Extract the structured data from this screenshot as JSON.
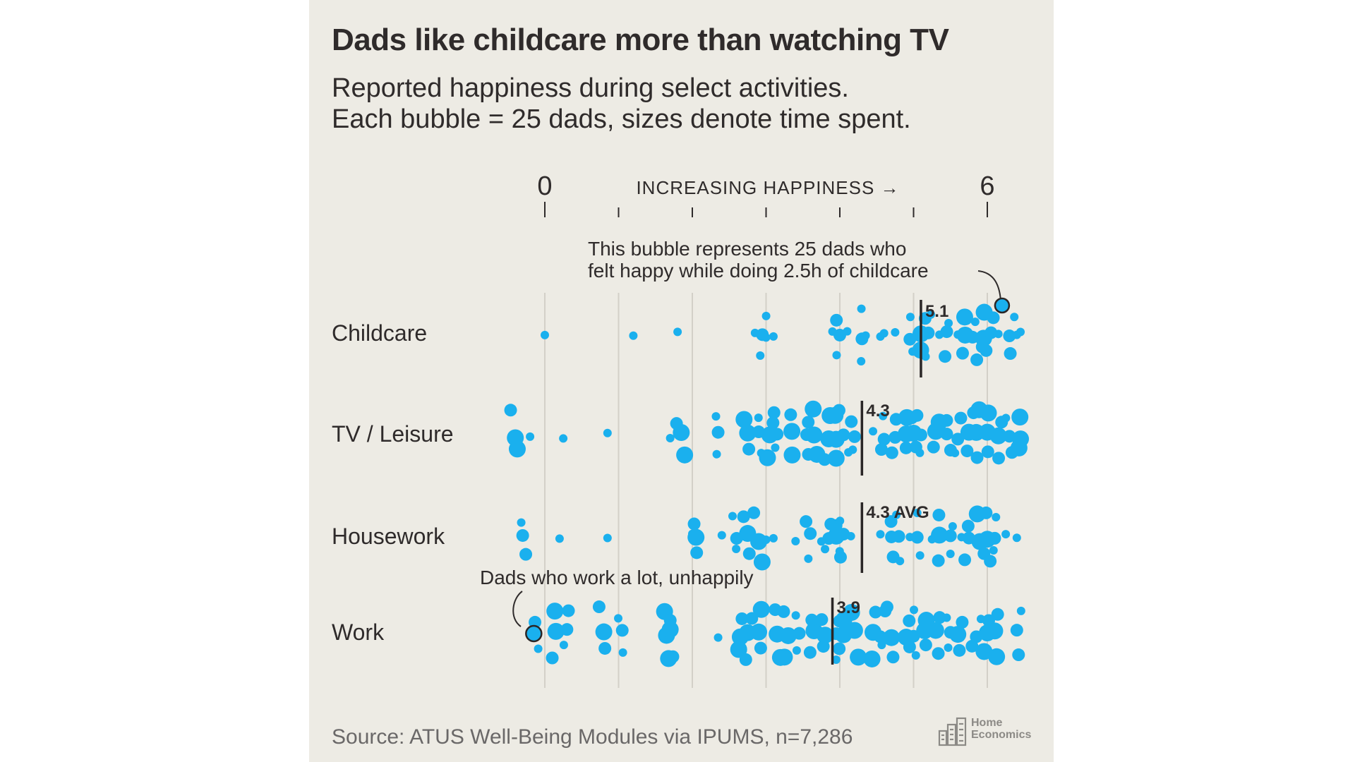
{
  "header": {
    "title": "Dads like childcare more than watching TV",
    "subtitle_line1": "Reported happiness during select activities.",
    "subtitle_line2": "Each bubble = 25 dads, sizes denote time spent."
  },
  "footer": {
    "source": "Source: ATUS Well-Being Modules via IPUMS, n=7,286",
    "logo_line1": "Home",
    "logo_line2": "Economics"
  },
  "colors": {
    "background": "#edebe4",
    "bubble": "#1ab0ee",
    "text": "#2f2b2b",
    "gridline": "#d3d0c8"
  },
  "chart_data": {
    "type": "scatter",
    "xlim": [
      -0.5,
      6.5
    ],
    "xticks": [
      0,
      1,
      2,
      3,
      4,
      5,
      6
    ],
    "xtick_labels": [
      "0",
      "",
      "",
      "",
      "",
      "",
      "6"
    ],
    "axis_label": "INCREASING HAPPINESS →",
    "categories": [
      "Childcare",
      "TV / Leisure",
      "Housework",
      "Work"
    ],
    "series": [
      {
        "name": "Childcare",
        "average": 5.1,
        "average_label": "5.1",
        "bubble_values": [
          0,
          1.2,
          1.8,
          2.85,
          2.95,
          3.0,
          3.1,
          3.9,
          4.0,
          4.1,
          4.3,
          4.35,
          4.55,
          4.6,
          4.75,
          4.95,
          5.1,
          5.2,
          5.35,
          5.45,
          5.6,
          5.7,
          5.8,
          5.95,
          6.05,
          6.15,
          6.3,
          6.4,
          6.45
        ],
        "bubble_sizes": [
          1,
          1,
          1,
          1,
          2,
          1,
          1,
          1,
          2,
          1,
          2,
          1,
          1,
          1,
          1,
          2,
          3,
          2,
          1,
          2,
          1,
          3,
          2,
          3,
          2,
          1,
          2,
          1,
          1
        ]
      },
      {
        "name": "TV / Leisure",
        "average": 4.3,
        "average_label": "4.3",
        "bubble_values": [
          -0.4,
          -0.2,
          0.25,
          0.85,
          1.7,
          1.85,
          2.35,
          2.75,
          2.9,
          3.05,
          3.15,
          3.35,
          3.55,
          3.65,
          3.85,
          3.95,
          4.05,
          4.2,
          4.45,
          4.6,
          4.75,
          4.9,
          5.0,
          5.1,
          5.3,
          5.45,
          5.6,
          5.75,
          5.85,
          6.0,
          6.15,
          6.3,
          6.45
        ],
        "bubble_sizes": [
          3,
          1,
          1,
          1,
          1,
          3,
          2,
          3,
          2,
          3,
          2,
          3,
          2,
          3,
          3,
          3,
          2,
          2,
          1,
          2,
          2,
          3,
          3,
          2,
          3,
          2,
          2,
          3,
          3,
          3,
          3,
          2,
          3
        ]
      },
      {
        "name": "Housework",
        "average": 4.3,
        "average_label": "4.3 AVG",
        "bubble_values": [
          -0.3,
          0.2,
          0.85,
          2.0,
          2.05,
          2.4,
          2.6,
          2.75,
          2.9,
          3.0,
          3.1,
          3.4,
          3.6,
          3.75,
          3.85,
          3.95,
          4.05,
          4.15,
          4.55,
          4.7,
          4.8,
          4.95,
          5.05,
          5.25,
          5.35,
          5.5,
          5.65,
          5.75,
          5.9,
          6.0,
          6.1,
          6.25,
          6.4
        ],
        "bubble_sizes": [
          2,
          1,
          1,
          1,
          3,
          1,
          2,
          3,
          3,
          1,
          1,
          1,
          2,
          1,
          2,
          3,
          2,
          1,
          1,
          2,
          2,
          1,
          2,
          1,
          3,
          2,
          1,
          2,
          3,
          3,
          2,
          1,
          1
        ]
      },
      {
        "name": "Work",
        "average": 3.9,
        "average_label": "3.9",
        "bubble_values": [
          -0.15,
          0.15,
          0.3,
          0.8,
          1.05,
          1.65,
          1.7,
          2.35,
          2.65,
          2.75,
          2.9,
          3.15,
          3.3,
          3.45,
          3.65,
          3.8,
          3.95,
          4.05,
          4.2,
          4.45,
          4.55,
          4.7,
          4.9,
          5.0,
          5.15,
          5.3,
          5.5,
          5.6,
          5.85,
          6.0,
          6.1,
          6.4
        ],
        "bubble_sizes": [
          2,
          3,
          2,
          3,
          2,
          3,
          3,
          1,
          3,
          3,
          3,
          3,
          3,
          2,
          3,
          3,
          2,
          3,
          3,
          3,
          2,
          3,
          3,
          2,
          3,
          3,
          2,
          3,
          2,
          3,
          3,
          2
        ]
      }
    ],
    "annotations": [
      {
        "text_line1": "This bubble represents 25 dads who",
        "text_line2": "felt happy while doing 2.5h of childcare",
        "row": "Childcare",
        "x": 6.2
      },
      {
        "text": "Dads who work a lot, unhappily",
        "row": "Work",
        "x": -0.15
      }
    ]
  }
}
